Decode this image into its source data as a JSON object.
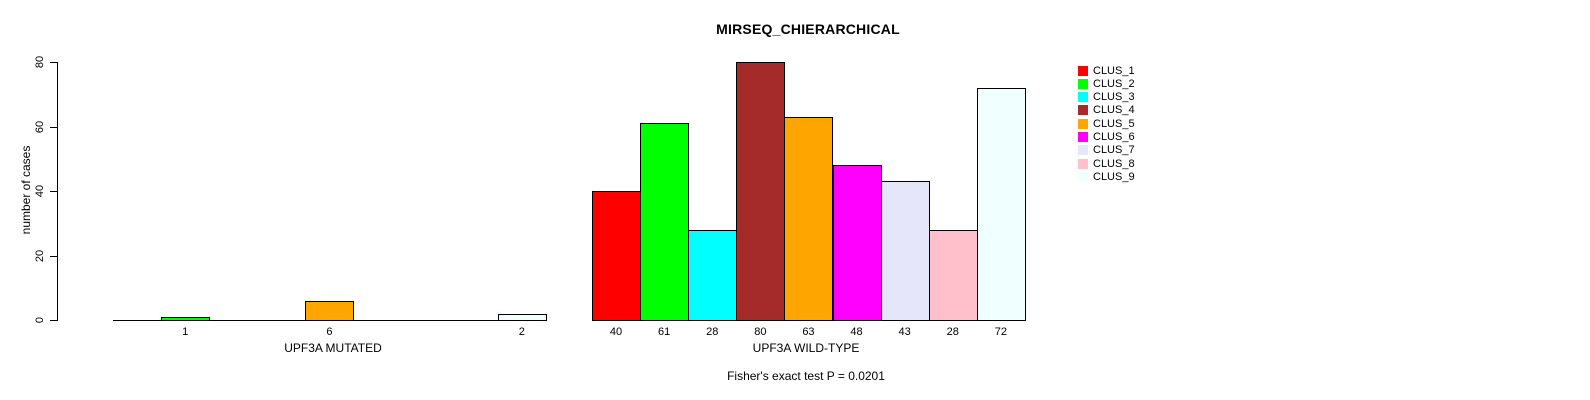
{
  "chart_data": {
    "type": "bar",
    "title": "MIRSEQ_CHIERARCHICAL",
    "ylabel": "number of cases",
    "xlabel": "",
    "ylim": [
      0,
      80
    ],
    "yticks": [
      0,
      20,
      40,
      60,
      80
    ],
    "grid": false,
    "bar_border_color": "#000000",
    "legend_position": "right-outside",
    "legend": [
      {
        "label": "CLUS_1",
        "color": "#FF0000"
      },
      {
        "label": "CLUS_2",
        "color": "#00FF00"
      },
      {
        "label": "CLUS_3",
        "color": "#00FFFF"
      },
      {
        "label": "CLUS_4",
        "color": "#A52A2A"
      },
      {
        "label": "CLUS_5",
        "color": "#FFA500"
      },
      {
        "label": "CLUS_6",
        "color": "#FF00FF"
      },
      {
        "label": "CLUS_7",
        "color": "#E6E6FA"
      },
      {
        "label": "CLUS_8",
        "color": "#FFC0CB"
      },
      {
        "label": "CLUS_9",
        "color": "#F0FFFF"
      }
    ],
    "categories": [
      "CLUS_1",
      "CLUS_2",
      "CLUS_3",
      "CLUS_4",
      "CLUS_5",
      "CLUS_6",
      "CLUS_7",
      "CLUS_8",
      "CLUS_9"
    ],
    "groups": [
      {
        "label": "UPF3A MUTATED",
        "values": [
          0,
          1,
          0,
          0,
          6,
          0,
          0,
          0,
          2
        ]
      },
      {
        "label": "UPF3A WILD-TYPE",
        "values": [
          40,
          61,
          28,
          80,
          63,
          48,
          43,
          28,
          72
        ]
      }
    ],
    "annotation": "Fisher's exact test P = 0.0201"
  }
}
